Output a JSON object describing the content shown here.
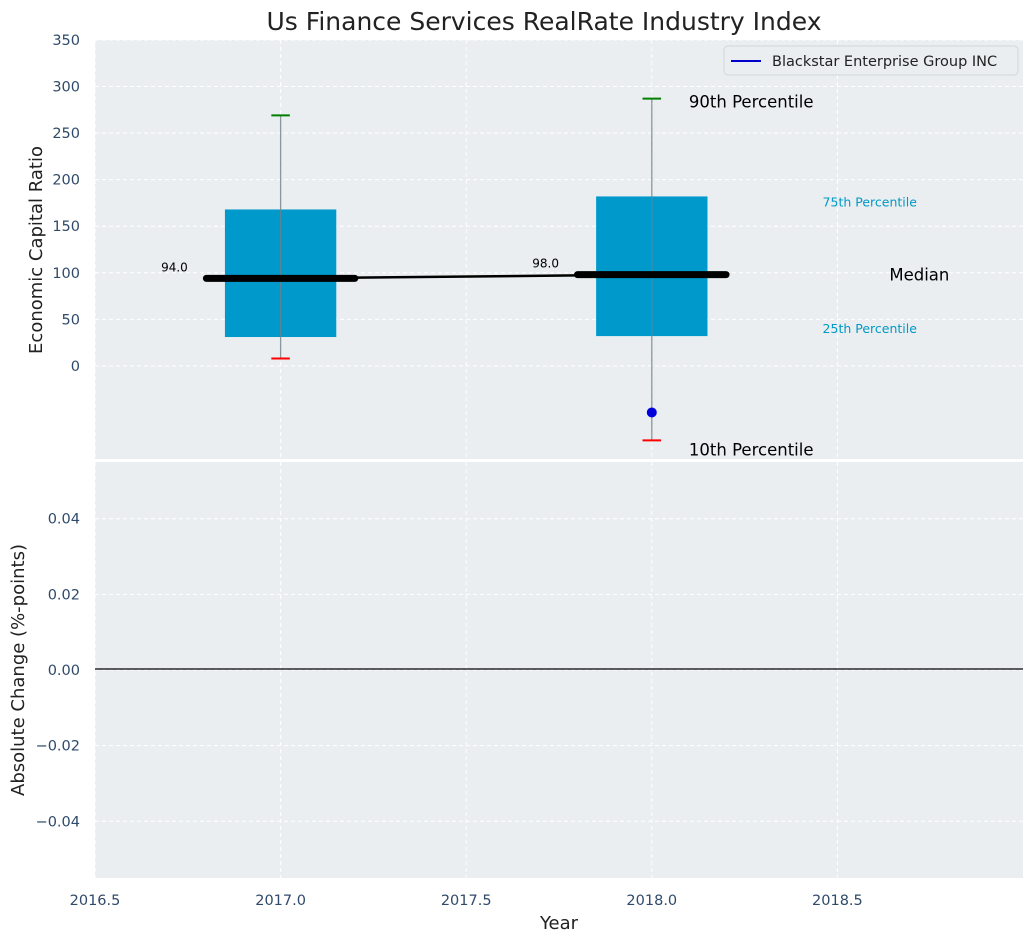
{
  "title": "Us Finance Services RealRate Industry Index",
  "colors": {
    "panel_bg": "#eaeef0",
    "box_fill": "#0099cc",
    "median_line": "#000000",
    "whisker_top": "#008000",
    "whisker_bottom": "#ff0000",
    "company_point": "#0000dd",
    "annotation_small": "#0099c6"
  },
  "chart_data": [
    {
      "type": "box",
      "ylabel": "Economic Capital Ratio",
      "ylim": [
        -100,
        350
      ],
      "xlim": [
        2016.5,
        2019.0
      ],
      "yticks": [
        0,
        50,
        100,
        150,
        200,
        250,
        300,
        350
      ],
      "grid": true,
      "legend": {
        "entries": [
          "Blackstar Enterprise Group INC"
        ],
        "placement": "top-right"
      },
      "boxes": [
        {
          "x": 2017.0,
          "p10": 8,
          "p25": 31,
          "median": 94,
          "p75": 168,
          "p90": 269,
          "median_label": "94.0"
        },
        {
          "x": 2018.0,
          "p10": -80,
          "p25": 32,
          "median": 98,
          "p75": 182,
          "p90": 287,
          "median_label": "98.0"
        }
      ],
      "median_trend": [
        [
          2017.0,
          94
        ],
        [
          2018.0,
          98
        ]
      ],
      "company_points": [
        {
          "x": 2018.0,
          "y": -50
        }
      ],
      "annotations": {
        "p90": "90th Percentile",
        "p75": "75th Percentile",
        "median": "Median",
        "p25": "25th Percentile",
        "p10": "10th Percentile"
      }
    },
    {
      "type": "line",
      "xlabel": "Year",
      "ylabel": "Absolute Change (%-points)",
      "xlim": [
        2016.5,
        2019.0
      ],
      "ylim": [
        -0.055,
        0.055
      ],
      "xticks": [
        "2016.5",
        "2017.0",
        "2017.5",
        "2018.0",
        "2018.5"
      ],
      "yticks": [
        "−0.04",
        "−0.02",
        "0.00",
        "0.02",
        "0.04"
      ],
      "grid": true,
      "reference_line_y": 0.0
    }
  ]
}
